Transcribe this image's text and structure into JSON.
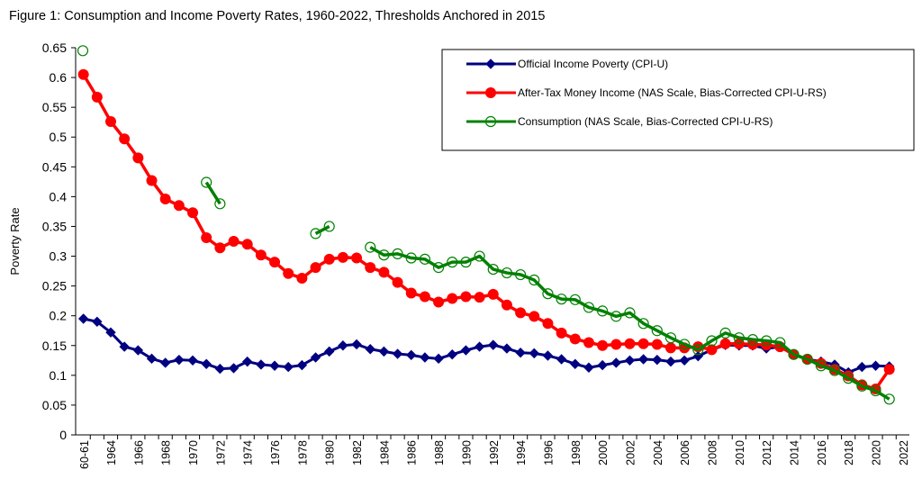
{
  "chart_data": {
    "type": "line",
    "title": "Figure 1: Consumption and Income Poverty Rates, 1960-2022, Thresholds Anchored in 2015",
    "xlabel": "",
    "ylabel": "Poverty Rate",
    "ylim": [
      0,
      0.65
    ],
    "yticks": [
      "0",
      "0.05",
      "0.1",
      "0.15",
      "0.2",
      "0.25",
      "0.3",
      "0.35",
      "0.4",
      "0.45",
      "0.5",
      "0.55",
      "0.6",
      "0.65"
    ],
    "yticks_values": [
      0,
      0.05,
      0.1,
      0.15,
      0.2,
      0.25,
      0.3,
      0.35,
      0.4,
      0.45,
      0.5,
      0.55,
      0.6,
      0.65
    ],
    "xticks": [
      "60-61",
      "1964",
      "1966",
      "1968",
      "1970",
      "1972",
      "1974",
      "1976",
      "1978",
      "1980",
      "1982",
      "1984",
      "1986",
      "1988",
      "1990",
      "1992",
      "1994",
      "1996",
      "1998",
      "2000",
      "2002",
      "2004",
      "2006",
      "2008",
      "2010",
      "2012",
      "2014",
      "2016",
      "2018",
      "2020",
      "2022"
    ],
    "xticks_positions": [
      1961,
      1964,
      1966,
      1968,
      1970,
      1972,
      1974,
      1976,
      1978,
      1980,
      1982,
      1984,
      1986,
      1988,
      1990,
      1992,
      1994,
      1996,
      1998,
      2000,
      2002,
      2004,
      2006,
      2008,
      2010,
      2012,
      2014,
      2016,
      2018,
      2020,
      2022
    ],
    "xlim": [
      1961,
      2022
    ],
    "grid": false,
    "legend_position": "top-right",
    "series": [
      {
        "name": "Official Income Poverty (CPI-U)",
        "color": "#000080",
        "marker": "diamond",
        "segments": [
          {
            "x": [
              1963,
              1964,
              1965,
              1966,
              1967,
              1968,
              1969,
              1970,
              1971,
              1972,
              1973,
              1974,
              1975,
              1976,
              1977,
              1978,
              1979,
              1980,
              1981,
              1982,
              1983,
              1984,
              1985,
              1986,
              1987,
              1988,
              1989,
              1990,
              1991,
              1992,
              1993,
              1994,
              1995,
              1996,
              1997,
              1998,
              1999,
              2000,
              2001,
              2002,
              2003,
              2004,
              2005,
              2006,
              2007,
              2008,
              2009,
              2010,
              2011,
              2012,
              2013,
              2014,
              2015,
              2016,
              2017,
              2018,
              2019,
              2020,
              2021,
              2022
            ],
            "y": [
              0.195,
              0.19,
              0.172,
              0.148,
              0.142,
              0.128,
              0.121,
              0.126,
              0.125,
              0.119,
              0.111,
              0.112,
              0.123,
              0.118,
              0.116,
              0.114,
              0.117,
              0.13,
              0.14,
              0.15,
              0.152,
              0.144,
              0.14,
              0.136,
              0.134,
              0.13,
              0.128,
              0.135,
              0.142,
              0.148,
              0.151,
              0.145,
              0.138,
              0.137,
              0.133,
              0.127,
              0.119,
              0.113,
              0.117,
              0.121,
              0.125,
              0.127,
              0.126,
              0.123,
              0.125,
              0.132,
              0.143,
              0.151,
              0.15,
              0.15,
              0.145,
              0.148,
              0.135,
              0.127,
              0.123,
              0.118,
              0.105,
              0.114,
              0.116,
              0.115
            ]
          }
        ]
      },
      {
        "name": "After-Tax Money Income (NAS Scale, Bias-Corrected CPI-U-RS)",
        "color": "#ff0000",
        "marker": "circle",
        "segments": [
          {
            "x": [
              1963,
              1964,
              1965,
              1966,
              1967,
              1968,
              1969,
              1970,
              1971,
              1972,
              1973,
              1974,
              1975,
              1976,
              1977,
              1978,
              1979,
              1980,
              1981,
              1982,
              1983,
              1984,
              1985,
              1986,
              1987,
              1988,
              1989,
              1990,
              1991,
              1992,
              1993,
              1994,
              1995,
              1996,
              1997,
              1998,
              1999,
              2000,
              2001,
              2002,
              2003,
              2004,
              2005,
              2006,
              2007,
              2008,
              2009,
              2010,
              2011,
              2012,
              2013,
              2014,
              2015,
              2016,
              2017,
              2018,
              2019,
              2020,
              2021,
              2022
            ],
            "y": [
              0.605,
              0.567,
              0.526,
              0.497,
              0.465,
              0.427,
              0.396,
              0.385,
              0.373,
              0.331,
              0.314,
              0.325,
              0.32,
              0.302,
              0.29,
              0.271,
              0.263,
              0.281,
              0.295,
              0.298,
              0.297,
              0.281,
              0.273,
              0.256,
              0.238,
              0.232,
              0.223,
              0.229,
              0.232,
              0.231,
              0.236,
              0.218,
              0.205,
              0.199,
              0.187,
              0.171,
              0.161,
              0.155,
              0.15,
              0.152,
              0.153,
              0.153,
              0.152,
              0.146,
              0.146,
              0.148,
              0.143,
              0.153,
              0.153,
              0.152,
              0.151,
              0.148,
              0.135,
              0.127,
              0.12,
              0.11,
              0.099,
              0.084,
              0.077,
              0.11
            ]
          }
        ]
      },
      {
        "name": "Consumption (NAS Scale, Bias-Corrected CPI-U-RS)",
        "color": "#008000",
        "marker": "open-circle",
        "segments": [
          {
            "x": [
              1961
            ],
            "y": [
              0.645
            ]
          },
          {
            "x": [
              1972,
              1973
            ],
            "y": [
              0.424,
              0.388
            ]
          },
          {
            "x": [
              1980,
              1981
            ],
            "y": [
              0.338,
              0.35
            ]
          },
          {
            "x": [
              1984,
              1985,
              1986,
              1987,
              1988,
              1989,
              1990,
              1991,
              1992,
              1993,
              1994,
              1995,
              1996,
              1997,
              1998,
              1999,
              2000,
              2001,
              2002,
              2003,
              2004,
              2005,
              2006,
              2007,
              2008,
              2009,
              2010,
              2011,
              2012,
              2013,
              2014,
              2015,
              2016,
              2017,
              2018,
              2019,
              2020,
              2021,
              2022
            ],
            "y": [
              0.315,
              0.302,
              0.304,
              0.297,
              0.295,
              0.281,
              0.29,
              0.29,
              0.3,
              0.278,
              0.272,
              0.269,
              0.26,
              0.237,
              0.228,
              0.227,
              0.214,
              0.208,
              0.199,
              0.205,
              0.187,
              0.175,
              0.163,
              0.152,
              0.143,
              0.158,
              0.171,
              0.163,
              0.16,
              0.158,
              0.155,
              0.135,
              0.127,
              0.116,
              0.108,
              0.095,
              0.082,
              0.074,
              0.06
            ]
          }
        ]
      }
    ]
  }
}
